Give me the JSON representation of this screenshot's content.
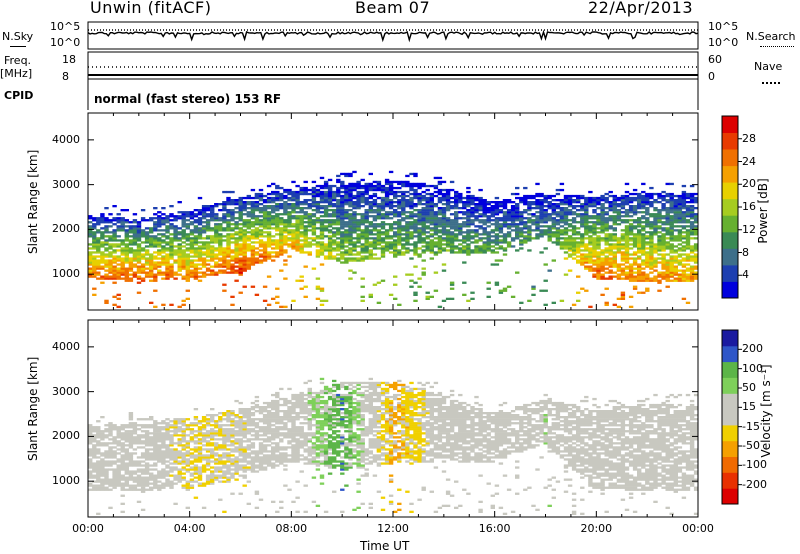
{
  "header": {
    "title": "Unwin (fitACF)",
    "beam": "Beam 07",
    "date": "22/Apr/2013"
  },
  "strip": {
    "nsky_label": "N.Sky",
    "nsearch_label": "N.Search",
    "freq_label": "Freq.",
    "freq_unit": "[MHz]",
    "nave_label": "Nave",
    "cpid_label": "CPID",
    "mode_text": "normal (fast stereo) 153 RF",
    "noise_ticks_left": [
      "10^5",
      "10^0"
    ],
    "noise_ticks_right": [
      "10^5",
      "10^0"
    ],
    "freq_ticks": [
      "18",
      "8"
    ],
    "nave_ticks": [
      "60",
      "0"
    ]
  },
  "colors": {
    "noise_line": "#000000",
    "power_scale": [
      "#0000dd",
      "#1d3fb0",
      "#3d6f8a",
      "#3a8a55",
      "#66b030",
      "#a6cc20",
      "#e8d000",
      "#f5a000",
      "#f07000",
      "#e83a00",
      "#dd0000"
    ],
    "velocity_scale": [
      "#1a1aa0",
      "#2f56c8",
      "#5cb548",
      "#7ed05a",
      "#c8c8c0",
      "#c8c8c0",
      "#f0d000",
      "#f5a000",
      "#f06a00",
      "#e83000",
      "#dd0000"
    ]
  },
  "chart_data": [
    {
      "type": "heatmap",
      "name": "power-panel",
      "ylabel": "Slant Range [km]",
      "yticks": [
        "1000",
        "2000",
        "3000",
        "4000"
      ],
      "ylim": [
        200,
        4600
      ],
      "colorbar_label": "Power [dB]",
      "colorbar_ticks": [
        "4",
        "8",
        "12",
        "16",
        "20",
        "24",
        "28"
      ],
      "clim": [
        0,
        30
      ],
      "x": [
        "00:00",
        "02:00",
        "04:00",
        "06:00",
        "08:00",
        "10:00",
        "12:00",
        "14:00",
        "16:00",
        "18:00",
        "20:00",
        "22:00",
        "24:00"
      ],
      "echo_band_bottom_km": [
        950,
        900,
        950,
        1100,
        1600,
        1300,
        1450,
        1550,
        1500,
        1900,
        950,
        900,
        900
      ],
      "echo_band_top_km": [
        2300,
        2200,
        2400,
        2700,
        2900,
        3000,
        3100,
        2900,
        2600,
        2800,
        2700,
        2800,
        2800
      ],
      "peak_power_db": [
        25,
        27,
        24,
        28,
        22,
        16,
        14,
        13,
        12,
        10,
        26,
        24,
        22
      ]
    },
    {
      "type": "heatmap",
      "name": "velocity-panel",
      "ylabel": "Slant Range [km]",
      "yticks": [
        "1000",
        "2000",
        "3000",
        "4000"
      ],
      "ylim": [
        200,
        4600
      ],
      "colorbar_label": "Velocity [m s⁻¹]",
      "colorbar_ticks": [
        "200",
        "100",
        "50",
        "15",
        "-15",
        "-50",
        "-100",
        "-200"
      ],
      "clim": [
        -250,
        250
      ],
      "x": [
        "00:00",
        "02:00",
        "04:00",
        "06:00",
        "08:00",
        "10:00",
        "12:00",
        "14:00",
        "16:00",
        "18:00",
        "20:00",
        "22:00",
        "24:00"
      ],
      "echo_band_bottom_km": [
        850,
        850,
        900,
        1100,
        1500,
        1300,
        1450,
        1500,
        1500,
        1900,
        900,
        850,
        850
      ],
      "echo_band_top_km": [
        2200,
        2300,
        2400,
        2600,
        2900,
        3200,
        3200,
        2900,
        2500,
        2800,
        2600,
        2700,
        2700
      ],
      "mean_velocity_ms": [
        -30,
        -10,
        -60,
        -40,
        -10,
        150,
        -120,
        -10,
        -10,
        40,
        -5,
        -5,
        -10
      ]
    }
  ],
  "xaxis": {
    "ticks": [
      "00:00",
      "04:00",
      "08:00",
      "12:00",
      "16:00",
      "20:00",
      "00:00"
    ],
    "label": "Time UT"
  }
}
